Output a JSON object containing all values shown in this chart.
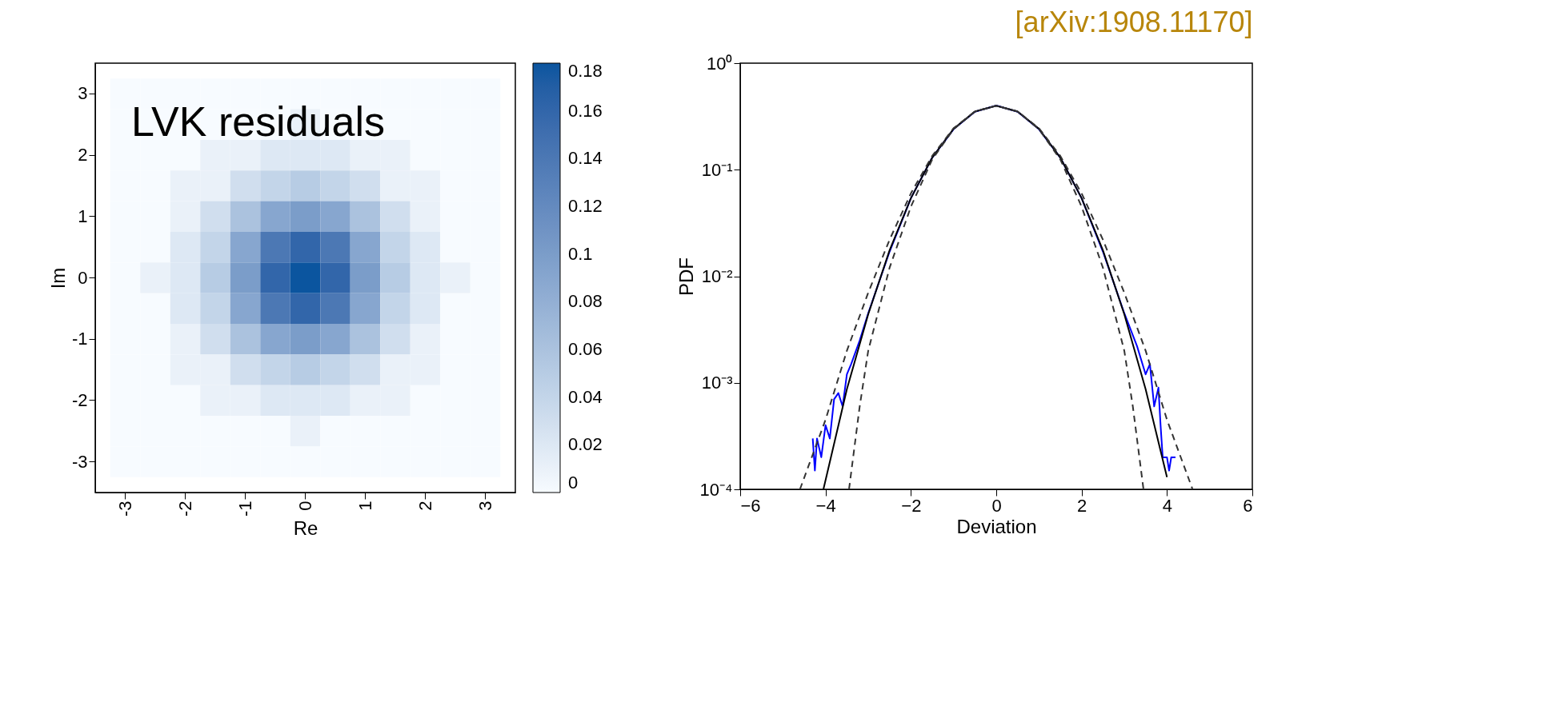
{
  "chart_data": [
    {
      "type": "heatmap",
      "xlabel": "Re",
      "ylabel": "Im",
      "annotations": [
        "LVK residuals"
      ],
      "categories": [
        "-3",
        null,
        "-2",
        null,
        "-1",
        null,
        "0",
        null,
        "1",
        null,
        "2",
        null,
        "3"
      ],
      "y_categories": [
        "3",
        null,
        "2",
        null,
        "1",
        null,
        "0",
        null,
        "-1",
        null,
        "-2",
        null,
        "-3"
      ],
      "cells": [
        [
          0,
          0,
          0,
          0,
          0,
          0,
          0,
          0,
          0,
          0,
          0,
          0,
          0
        ],
        [
          0,
          0,
          0,
          0,
          0,
          0,
          0.01,
          0,
          0,
          0,
          0,
          0,
          0
        ],
        [
          0,
          0,
          0,
          0.01,
          0.01,
          0.02,
          0.02,
          0.02,
          0.01,
          0.01,
          0,
          0,
          0
        ],
        [
          0,
          0,
          0.01,
          0.01,
          0.03,
          0.04,
          0.05,
          0.04,
          0.03,
          0.01,
          0.01,
          0,
          0
        ],
        [
          0,
          0,
          0.01,
          0.03,
          0.06,
          0.09,
          0.1,
          0.09,
          0.06,
          0.03,
          0.01,
          0,
          0
        ],
        [
          0,
          0,
          0.02,
          0.04,
          0.09,
          0.14,
          0.16,
          0.14,
          0.09,
          0.04,
          0.02,
          0,
          0
        ],
        [
          0,
          0.01,
          0.02,
          0.05,
          0.1,
          0.16,
          0.18,
          0.16,
          0.1,
          0.05,
          0.02,
          0.01,
          0
        ],
        [
          0,
          0,
          0.02,
          0.04,
          0.09,
          0.14,
          0.16,
          0.14,
          0.09,
          0.04,
          0.02,
          0,
          0
        ],
        [
          0,
          0,
          0.01,
          0.03,
          0.06,
          0.09,
          0.1,
          0.09,
          0.06,
          0.03,
          0.01,
          0,
          0
        ],
        [
          0,
          0,
          0.01,
          0.01,
          0.03,
          0.04,
          0.05,
          0.04,
          0.03,
          0.01,
          0.01,
          0,
          0
        ],
        [
          0,
          0,
          0,
          0.01,
          0.01,
          0.02,
          0.02,
          0.02,
          0.01,
          0.01,
          0,
          0,
          0
        ],
        [
          0,
          0,
          0,
          0,
          0,
          0,
          0.01,
          0,
          0,
          0,
          0,
          0,
          0
        ],
        [
          0,
          0,
          0,
          0,
          0,
          0,
          0,
          0,
          0,
          0,
          0,
          0,
          0
        ]
      ],
      "clim": [
        0,
        0.18
      ],
      "cticks": [
        0,
        0.02,
        0.04,
        0.06,
        0.08,
        0.1,
        0.12,
        0.14,
        0.16,
        0.18
      ],
      "colors": [
        "#f7fbff",
        "#0b559f"
      ]
    },
    {
      "type": "line",
      "title": "[arXiv:1908.11170]",
      "xlabel": "Deviation",
      "ylabel": "PDF",
      "log": "y",
      "xlim": [
        -6,
        6
      ],
      "xticks": [
        -6,
        -4,
        -2,
        0,
        2,
        4,
        6
      ],
      "ylim": [
        0.0001,
        1
      ],
      "yticks": [
        {
          "value": 0.0001,
          "label": "10⁻⁴"
        },
        {
          "value": 0.001,
          "label": "10⁻³"
        },
        {
          "value": 0.01,
          "label": "10⁻²"
        },
        {
          "value": 0.1,
          "label": "10⁻¹"
        },
        {
          "value": 1,
          "label": "10⁰"
        }
      ],
      "series": [
        {
          "color": "#0000ff",
          "line_style": "solid",
          "x": [
            -4.3,
            -4.25,
            -4.2,
            -4.1,
            -4.0,
            -3.9,
            -3.8,
            -3.7,
            -3.6,
            -3.5,
            -3.4,
            -3.2,
            -3,
            -2.5,
            -2,
            -1.5,
            -1,
            -0.5,
            0,
            0.5,
            1,
            1.5,
            2,
            2.5,
            3,
            3.3,
            3.5,
            3.6,
            3.7,
            3.8,
            3.85,
            3.9,
            4.0,
            4.05,
            4.1,
            4.2
          ],
          "values": [
            0.0003,
            0.00015,
            0.0003,
            0.0002,
            0.0004,
            0.0003,
            0.0007,
            0.0008,
            0.0006,
            0.0012,
            0.0015,
            0.0025,
            0.0045,
            0.017,
            0.054,
            0.13,
            0.24,
            0.35,
            0.4,
            0.35,
            0.24,
            0.13,
            0.054,
            0.017,
            0.0045,
            0.0022,
            0.0012,
            0.0015,
            0.0006,
            0.0009,
            0.0004,
            0.0002,
            0.0002,
            0.00015,
            0.0002,
            0.0002
          ]
        },
        {
          "color": "#000000",
          "line_style": "solid",
          "x": [
            -4.05,
            -3.5,
            -3,
            -2.5,
            -2,
            -1.5,
            -1,
            -0.5,
            0,
            0.5,
            1,
            1.5,
            2,
            2.5,
            3,
            3.5,
            4.0
          ],
          "values": [
            0.0001,
            0.00087,
            0.0044,
            0.0175,
            0.054,
            0.13,
            0.242,
            0.352,
            0.399,
            0.352,
            0.242,
            0.13,
            0.054,
            0.0175,
            0.0044,
            0.00087,
            0.00013
          ]
        },
        {
          "color": "#333333",
          "line_style": "dashed",
          "x": [
            -3.45,
            -3.2,
            -3,
            -2.5,
            -2,
            -1.5,
            -1,
            -0.5,
            0,
            0.5,
            1,
            1.5,
            2,
            2.5,
            3,
            3.2,
            3.45
          ],
          "values": [
            0.0001,
            0.0006,
            0.002,
            0.012,
            0.045,
            0.125,
            0.24,
            0.352,
            0.399,
            0.352,
            0.24,
            0.125,
            0.045,
            0.012,
            0.002,
            0.0006,
            0.0001
          ]
        },
        {
          "color": "#333333",
          "line_style": "dashed",
          "x": [
            -4.6,
            -4,
            -3.5,
            -3,
            -2.5,
            -2,
            -1.5,
            -1,
            -0.5,
            0,
            0.5,
            1,
            1.5,
            2,
            2.5,
            3,
            3.5,
            4,
            4.6
          ],
          "values": [
            0.0001,
            0.00045,
            0.002,
            0.007,
            0.022,
            0.06,
            0.135,
            0.245,
            0.352,
            0.399,
            0.352,
            0.245,
            0.135,
            0.06,
            0.022,
            0.007,
            0.002,
            0.00045,
            0.0001
          ]
        }
      ]
    }
  ]
}
